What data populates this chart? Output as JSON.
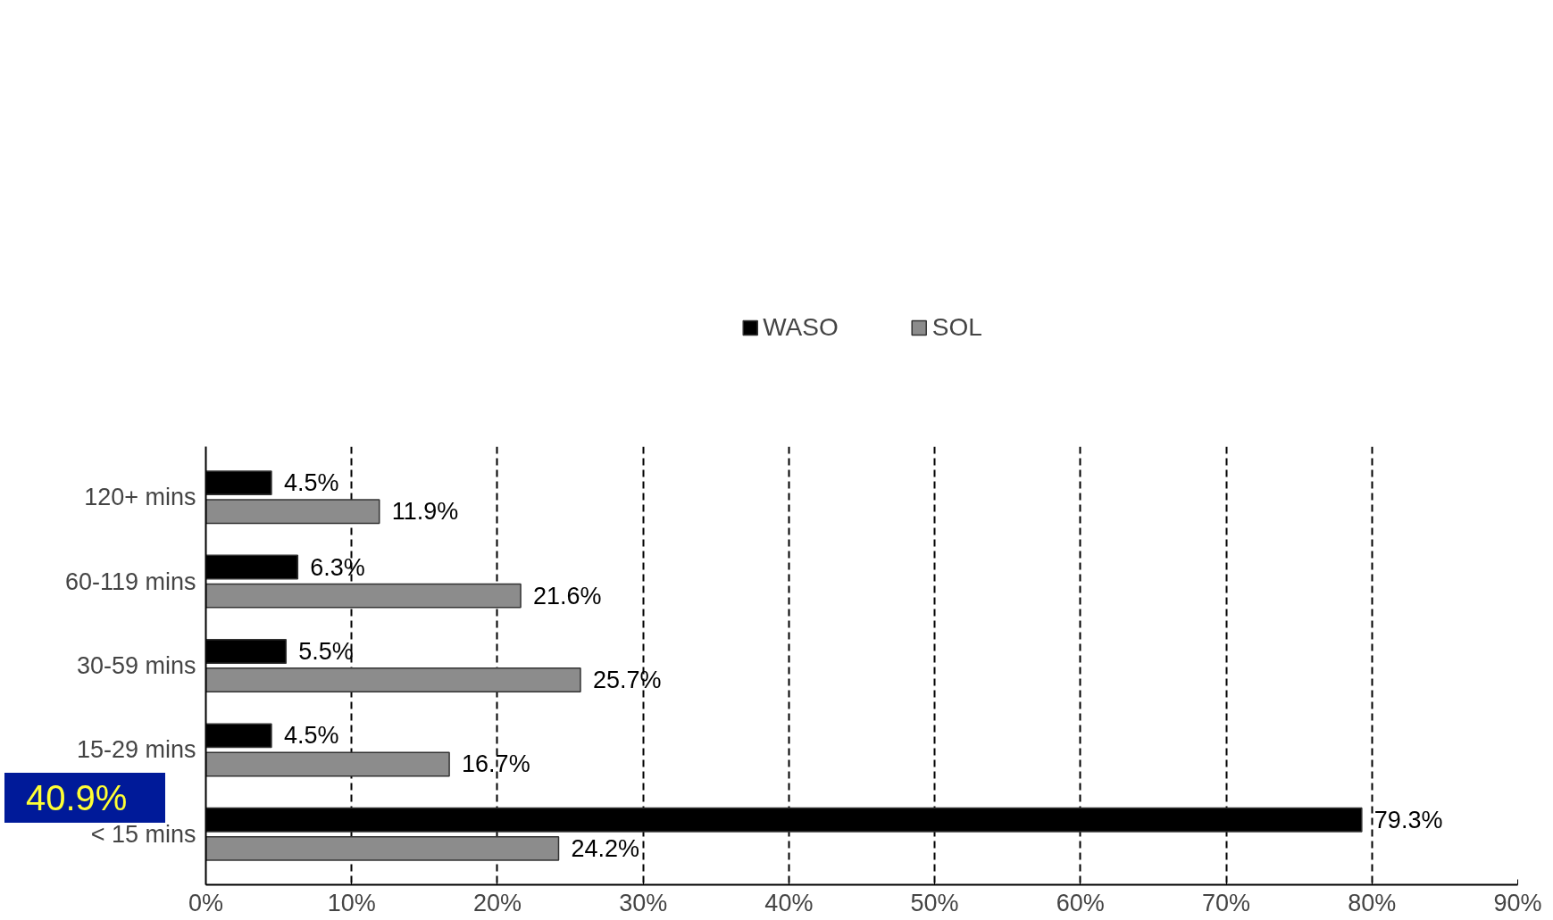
{
  "chart_data": {
    "type": "bar",
    "orientation": "horizontal",
    "categories": [
      "120+ mins",
      "60-119 mins",
      "30-59 mins",
      "15-29 mins",
      "< 15 mins"
    ],
    "series": [
      {
        "name": "WASO",
        "color": "#000000",
        "values": [
          4.5,
          6.3,
          5.5,
          4.5,
          79.3
        ]
      },
      {
        "name": "SOL",
        "color": "#8c8c8c",
        "values": [
          11.9,
          21.6,
          25.7,
          16.7,
          24.2
        ]
      }
    ],
    "value_labels": [
      [
        "4.5%",
        "6.3%",
        "5.5%",
        "4.5%",
        "79.3%"
      ],
      [
        "11.9%",
        "21.6%",
        "25.7%",
        "16.7%",
        "24.2%"
      ]
    ],
    "xlim": [
      0,
      90
    ],
    "xticks": [
      {
        "value": 0,
        "label": "0%"
      },
      {
        "value": 10,
        "label": "10%"
      },
      {
        "value": 20,
        "label": "20%"
      },
      {
        "value": 30,
        "label": "30%"
      },
      {
        "value": 40,
        "label": "40%"
      },
      {
        "value": 50,
        "label": "50%"
      },
      {
        "value": 60,
        "label": "60%"
      },
      {
        "value": 70,
        "label": "70%"
      },
      {
        "value": 80,
        "label": "80%"
      },
      {
        "value": 90,
        "label": "90%"
      }
    ],
    "grid": "x",
    "line_style": "dashed",
    "legend": "top",
    "annotations": [
      "40.9%"
    ]
  }
}
